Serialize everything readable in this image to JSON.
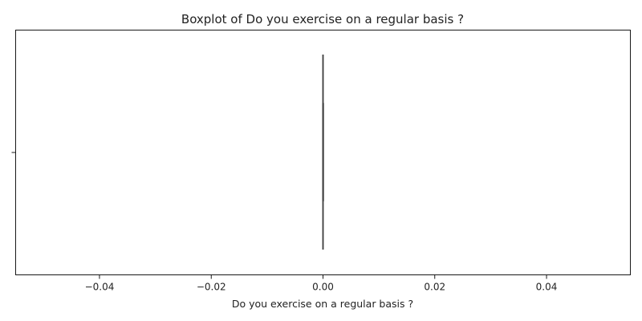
{
  "chart_data": {
    "type": "boxplot",
    "title": "Boxplot of Do you exercise on a regular basis ?",
    "xlabel": "Do you exercise on a regular basis ?",
    "ylabel": "",
    "orientation": "horizontal",
    "xlim": [
      -0.055,
      0.055
    ],
    "xticks": [
      -0.04,
      -0.02,
      0.0,
      0.02,
      0.04
    ],
    "xtick_labels": [
      "−0.04",
      "−0.02",
      "0.00",
      "0.02",
      "0.04"
    ],
    "grid": false,
    "box": {
      "min": 0.0,
      "q1": 0.0,
      "median": 0.0,
      "q3": 0.0,
      "max": 0.0
    },
    "colors": {
      "box_line": "#3f3f3f",
      "axes": "#000000",
      "text": "#222222"
    }
  }
}
